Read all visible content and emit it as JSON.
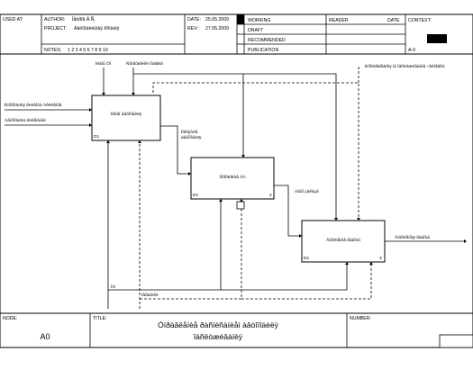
{
  "header": {
    "used_at": "USED AT:",
    "author_label": "AUTHOR:",
    "author_value": "Ïåòðîâ Ä.Ñ.",
    "project_label": "PROJECT:",
    "project_value": "Àâòîìîáèëüíàÿ êîìïàíèÿ",
    "notes_label": "NOTES:",
    "notes_value": "1 2 3 4 5 6 7 8 9 10",
    "date_label": "DATE:",
    "date_value": "25.05.2009",
    "rev_label": "REV:",
    "rev_value": "27.05.2009",
    "status_working": "WORKING",
    "status_draft": "DRAFT",
    "status_recommended": "RECOMMENDED",
    "status_publication": "PUBLICATION",
    "reader_label": "READER",
    "reader_date_label": "DATE",
    "context_label": "CONTEXT:",
    "context_node": "A-0"
  },
  "diagram": {
    "box1": {
      "label": "Ïðèåì àâòîìîáèëÿ",
      "code": "D1",
      "num": ""
    },
    "box2": {
      "label": "Îôîðìëåíèå ÄÄ",
      "code": "D1",
      "num": "2"
    },
    "box3": {
      "label": "Âûïîëíåíèå ðàáîòû",
      "code": "D1",
      "num": "3"
    },
    "arrows": {
      "in1": "Èíôîðìàöèÿ êëèåíòà Âêëèåíòå",
      "in2": "Àâòîìîáèëü êëèåíòàìè",
      "ctrl1": "Ïëàíû ÒÎ",
      "ctrl2": "Ñîòðóäíèêè îòäåëà",
      "ctrl3": "Èññëåäîâàíèÿ íà îáñëóæèâàíèå ÷åëîâåêà",
      "mid1a": "Ïðèíÿòèå",
      "mid1b": "àâòîìîáèëÿ",
      "mid2": "Àâòî çàêàçà",
      "out1": "Âûïîëíåííàÿ ðàáîòà",
      "mech1": "ÎÒ",
      "mech2": "Ìåõàíèêè"
    }
  },
  "footer": {
    "node_label": "NODE:",
    "node_value": "A0",
    "title_label": "TITLE:",
    "title_line1": "Óïðàâëåíèå ðàñïèñàíèåì àâòîìîáèëÿ",
    "title_line2": "îáñëóæèâàíèÿ",
    "number_label": "NUMBER:"
  }
}
